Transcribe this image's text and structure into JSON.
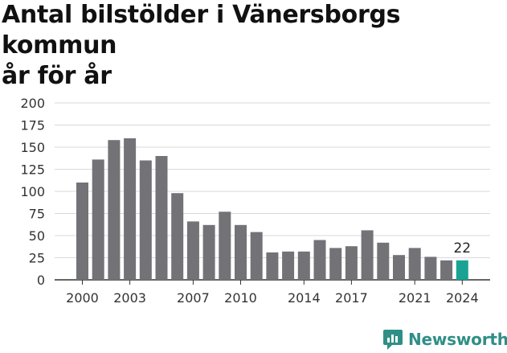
{
  "chart_data": {
    "type": "bar",
    "title": "Antal bilstölder i Vänersborgs kommun\når för år",
    "xlabel": "",
    "ylabel": "",
    "categories": [
      "2000",
      "2001",
      "2002",
      "2003",
      "2004",
      "2005",
      "2006",
      "2007",
      "2008",
      "2009",
      "2010",
      "2011",
      "2012",
      "2013",
      "2014",
      "2015",
      "2016",
      "2017",
      "2018",
      "2019",
      "2020",
      "2021",
      "2022",
      "2023",
      "2024"
    ],
    "values": [
      110,
      136,
      158,
      160,
      135,
      140,
      98,
      66,
      62,
      77,
      62,
      54,
      31,
      32,
      32,
      45,
      36,
      38,
      56,
      42,
      28,
      36,
      26,
      22,
      22
    ],
    "ylim": [
      0,
      200
    ],
    "yticks": [
      "0",
      "25",
      "50",
      "75",
      "100",
      "125",
      "150",
      "175",
      "200"
    ],
    "xtick_labels": [
      "2000",
      "2003",
      "2007",
      "2010",
      "2014",
      "2017",
      "2021",
      "2024"
    ],
    "highlight_label": "22",
    "grid": true,
    "colors": {
      "bar": "#737277",
      "highlight": "#1aa394",
      "grid": "#d9d9d9"
    }
  },
  "brand": {
    "name": "Newsworthy",
    "icon": "newsworthy-logo-icon"
  }
}
